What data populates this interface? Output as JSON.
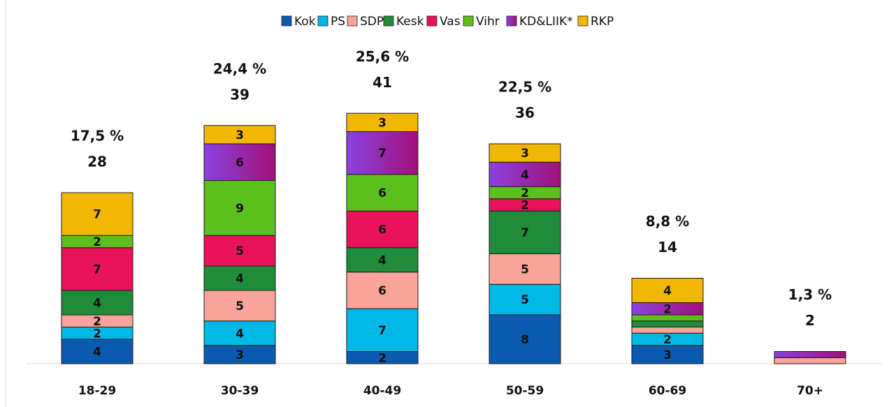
{
  "chart_data": {
    "type": "stacked_bar",
    "categories": [
      "18-29",
      "30-39",
      "40-49",
      "50-59",
      "60-69",
      "70+"
    ],
    "series": [
      {
        "name": "Kok",
        "color": "#0a5bb0",
        "values": [
          4,
          3,
          2,
          8,
          3,
          0
        ],
        "value_labels": [
          "4",
          "3",
          "2",
          "8",
          "3",
          null
        ]
      },
      {
        "name": "PS",
        "color": "#00b8e6",
        "values": [
          2,
          4,
          7,
          5,
          2,
          0
        ],
        "value_labels": [
          "2",
          "4",
          "7",
          "5",
          "2",
          null
        ]
      },
      {
        "name": "SDP",
        "color": "#f9a39a",
        "values": [
          2,
          5,
          6,
          5,
          1,
          1
        ],
        "value_labels": [
          "2",
          "5",
          "6",
          "5",
          null,
          null
        ]
      },
      {
        "name": "Kesk",
        "color": "#1e8c3a",
        "values": [
          4,
          4,
          4,
          7,
          1,
          0
        ],
        "value_labels": [
          "4",
          "4",
          "4",
          "7",
          null,
          null
        ]
      },
      {
        "name": "Vas",
        "color": "#e8135a",
        "values": [
          7,
          5,
          6,
          2,
          0,
          0
        ],
        "value_labels": [
          "7",
          "5",
          "6",
          "2",
          null,
          null
        ]
      },
      {
        "name": "Vihr",
        "color": "#5dbf1e",
        "values": [
          2,
          9,
          6,
          2,
          1,
          0
        ],
        "value_labels": [
          "2",
          "9",
          "6",
          "2",
          null,
          null
        ]
      },
      {
        "name": "KD&LIIK*",
        "color": "#8a42e0",
        "gradient_to": "#a3107a",
        "values": [
          0,
          6,
          7,
          4,
          2,
          1
        ],
        "value_labels": [
          null,
          "6",
          "7",
          "4",
          "2",
          null
        ]
      },
      {
        "name": "RKP",
        "color": "#f2b705",
        "values": [
          7,
          3,
          3,
          3,
          4,
          0
        ],
        "value_labels": [
          "7",
          "3",
          "3",
          "3",
          "4",
          null
        ]
      }
    ],
    "totals": [
      28,
      39,
      41,
      36,
      14,
      2
    ],
    "shares": [
      17.5,
      24.4,
      25.6,
      22.5,
      8.8,
      1.3
    ],
    "share_labels": [
      "17,5 %",
      "24,4 %",
      "25,6 %",
      "22,5 %",
      "8,8 %",
      "1,3 %"
    ],
    "ylim": [
      0,
      45
    ]
  }
}
